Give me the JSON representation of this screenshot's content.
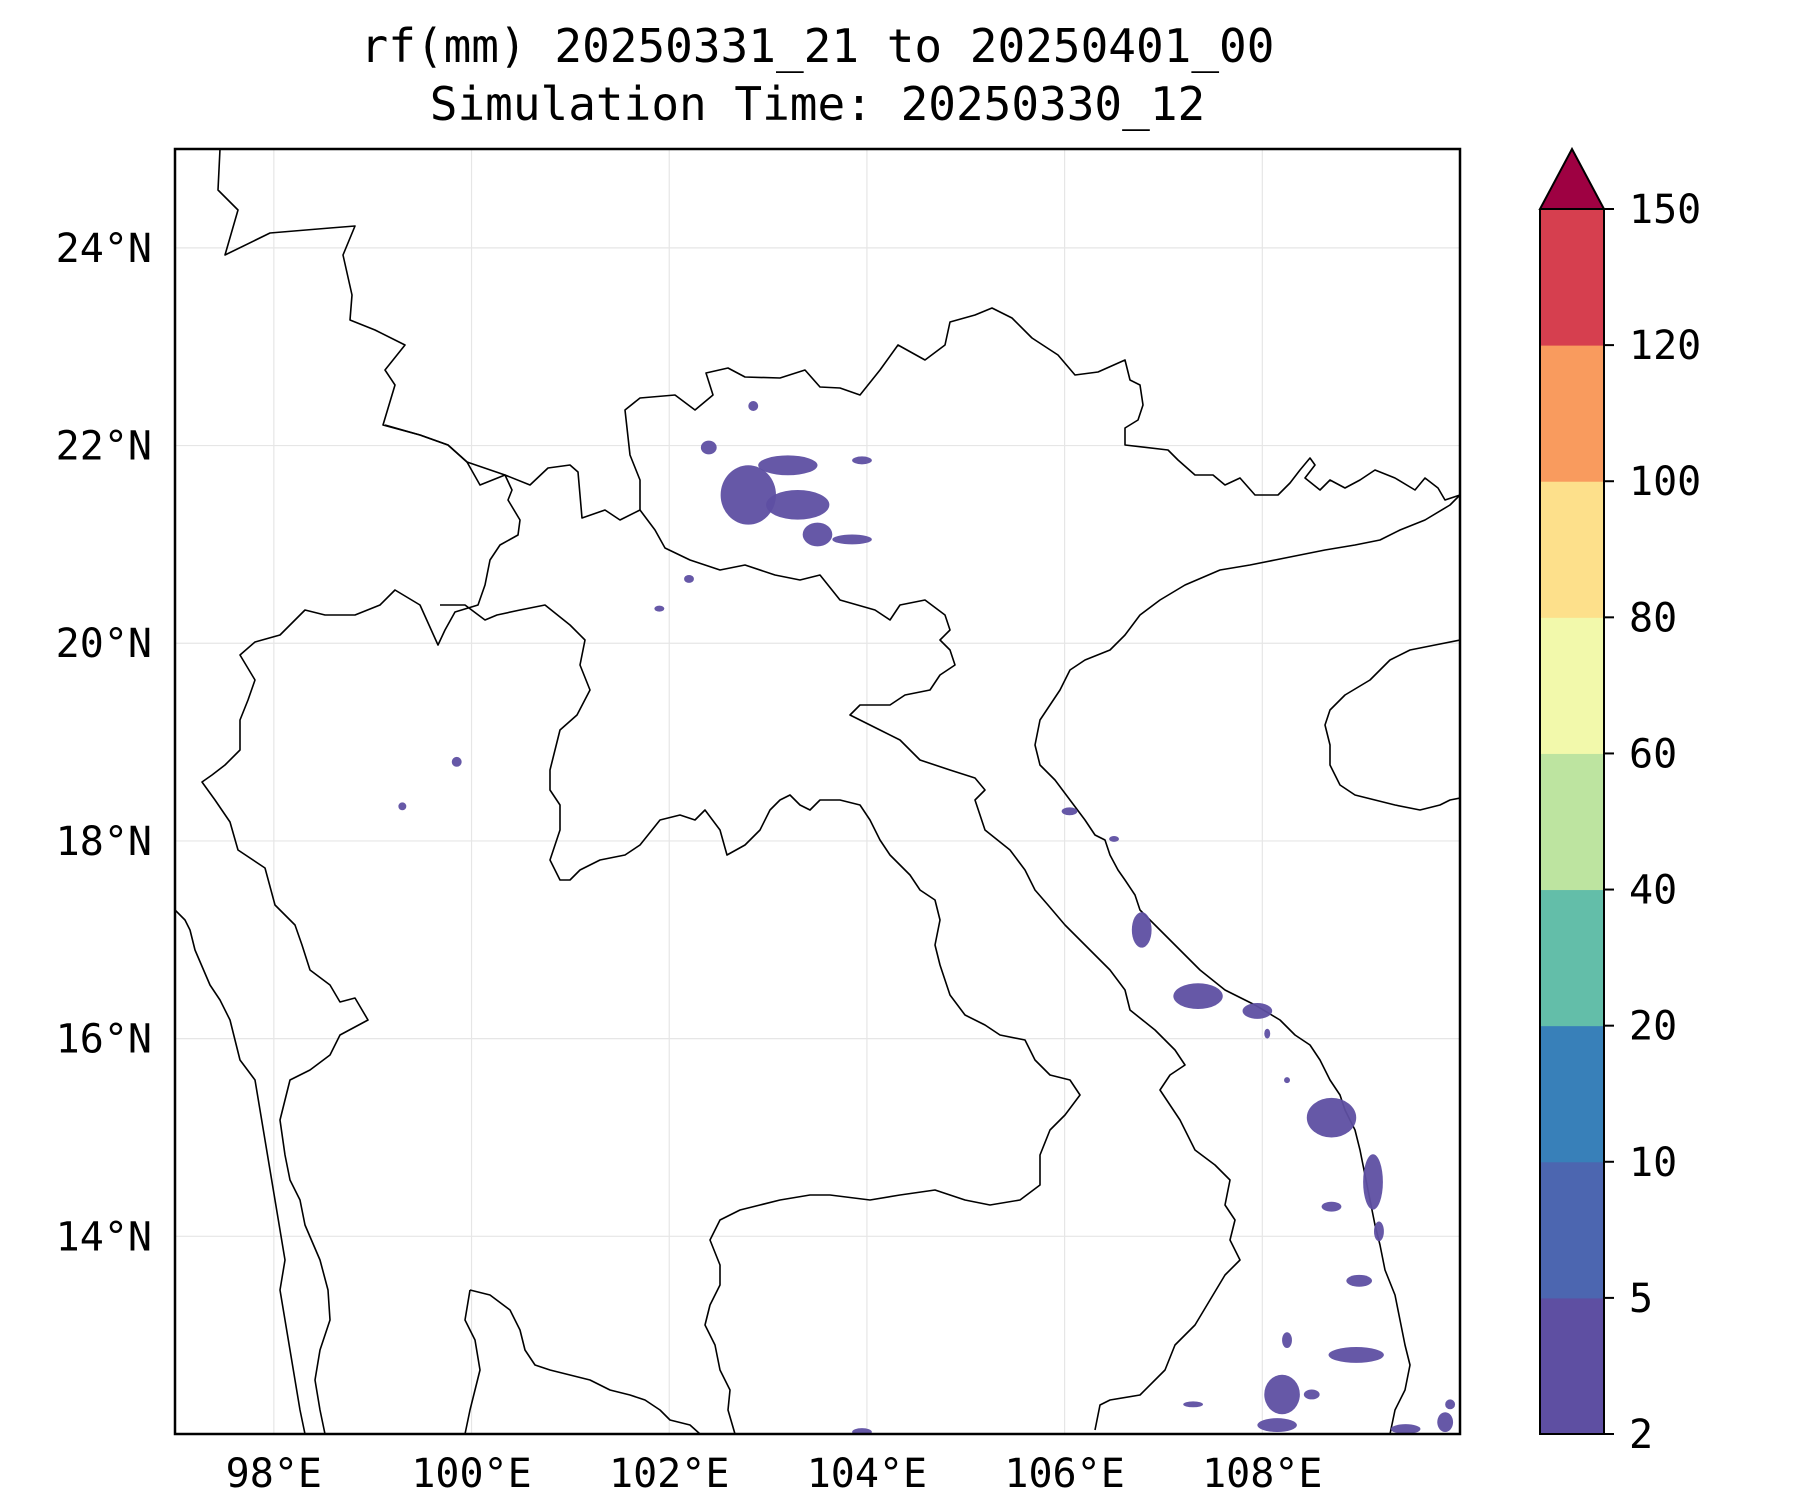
{
  "title": {
    "line1": "rf(mm) 20250331_21 to 20250401_00",
    "line2": "Simulation Time: 20250330_12"
  },
  "map": {
    "lon_range": [
      97.0,
      110.0
    ],
    "lat_range": [
      12.0,
      25.0
    ],
    "gridlines": true,
    "grid_color": "#e6e6e6",
    "coastline_color": "#000000",
    "lon_ticks": [
      {
        "value": 98,
        "label": "98°E"
      },
      {
        "value": 100,
        "label": "100°E"
      },
      {
        "value": 102,
        "label": "102°E"
      },
      {
        "value": 104,
        "label": "104°E"
      },
      {
        "value": 106,
        "label": "106°E"
      },
      {
        "value": 108,
        "label": "108°E"
      }
    ],
    "lat_ticks": [
      {
        "value": 14,
        "label": "14°N"
      },
      {
        "value": 16,
        "label": "16°N"
      },
      {
        "value": 18,
        "label": "18°N"
      },
      {
        "value": 20,
        "label": "20°N"
      },
      {
        "value": 22,
        "label": "22°N"
      },
      {
        "value": 24,
        "label": "24°N"
      }
    ]
  },
  "chart_data": {
    "type": "heatmap",
    "variable": "rf(mm)",
    "x_range": [
      97.0,
      110.0
    ],
    "y_range": [
      12.0,
      25.0
    ],
    "color_class": "2-5",
    "rain_patches": [
      {
        "lon": 102.8,
        "lat": 21.5,
        "rx": 0.28,
        "ry": 0.3
      },
      {
        "lon": 103.3,
        "lat": 21.4,
        "rx": 0.32,
        "ry": 0.15
      },
      {
        "lon": 103.2,
        "lat": 21.8,
        "rx": 0.3,
        "ry": 0.1
      },
      {
        "lon": 103.5,
        "lat": 21.1,
        "rx": 0.15,
        "ry": 0.12
      },
      {
        "lon": 103.85,
        "lat": 21.05,
        "rx": 0.2,
        "ry": 0.05
      },
      {
        "lon": 102.4,
        "lat": 21.98,
        "rx": 0.08,
        "ry": 0.07
      },
      {
        "lon": 103.95,
        "lat": 21.85,
        "rx": 0.1,
        "ry": 0.04
      },
      {
        "lon": 102.85,
        "lat": 22.4,
        "rx": 0.05,
        "ry": 0.05
      },
      {
        "lon": 102.2,
        "lat": 20.65,
        "rx": 0.05,
        "ry": 0.04
      },
      {
        "lon": 101.9,
        "lat": 20.35,
        "rx": 0.05,
        "ry": 0.03
      },
      {
        "lon": 99.85,
        "lat": 18.8,
        "rx": 0.05,
        "ry": 0.05
      },
      {
        "lon": 99.3,
        "lat": 18.35,
        "rx": 0.04,
        "ry": 0.04
      },
      {
        "lon": 106.05,
        "lat": 18.3,
        "rx": 0.08,
        "ry": 0.04
      },
      {
        "lon": 106.5,
        "lat": 18.02,
        "rx": 0.05,
        "ry": 0.03
      },
      {
        "lon": 106.78,
        "lat": 17.1,
        "rx": 0.1,
        "ry": 0.18
      },
      {
        "lon": 107.35,
        "lat": 16.43,
        "rx": 0.25,
        "ry": 0.13
      },
      {
        "lon": 107.95,
        "lat": 16.28,
        "rx": 0.15,
        "ry": 0.08
      },
      {
        "lon": 108.05,
        "lat": 16.05,
        "rx": 0.03,
        "ry": 0.05
      },
      {
        "lon": 108.25,
        "lat": 15.58,
        "rx": 0.03,
        "ry": 0.03
      },
      {
        "lon": 108.7,
        "lat": 15.2,
        "rx": 0.25,
        "ry": 0.2
      },
      {
        "lon": 109.12,
        "lat": 14.55,
        "rx": 0.1,
        "ry": 0.28
      },
      {
        "lon": 108.7,
        "lat": 14.3,
        "rx": 0.1,
        "ry": 0.05
      },
      {
        "lon": 109.18,
        "lat": 14.05,
        "rx": 0.05,
        "ry": 0.1
      },
      {
        "lon": 108.98,
        "lat": 13.55,
        "rx": 0.13,
        "ry": 0.06
      },
      {
        "lon": 108.25,
        "lat": 12.95,
        "rx": 0.05,
        "ry": 0.08
      },
      {
        "lon": 108.95,
        "lat": 12.8,
        "rx": 0.28,
        "ry": 0.08
      },
      {
        "lon": 108.2,
        "lat": 12.4,
        "rx": 0.18,
        "ry": 0.2
      },
      {
        "lon": 108.5,
        "lat": 12.4,
        "rx": 0.08,
        "ry": 0.05
      },
      {
        "lon": 108.15,
        "lat": 12.09,
        "rx": 0.2,
        "ry": 0.07
      },
      {
        "lon": 107.3,
        "lat": 12.3,
        "rx": 0.1,
        "ry": 0.03
      },
      {
        "lon": 103.95,
        "lat": 12.02,
        "rx": 0.1,
        "ry": 0.04
      },
      {
        "lon": 109.45,
        "lat": 12.05,
        "rx": 0.15,
        "ry": 0.05
      },
      {
        "lon": 109.85,
        "lat": 12.12,
        "rx": 0.08,
        "ry": 0.1
      },
      {
        "lon": 109.9,
        "lat": 12.3,
        "rx": 0.05,
        "ry": 0.05
      }
    ]
  },
  "colorbar": {
    "levels": [
      "2",
      "5",
      "10",
      "20",
      "40",
      "60",
      "80",
      "100",
      "120",
      "150"
    ],
    "colors": [
      "#5e4fa2",
      "#4c66b0",
      "#3880b9",
      "#63bea9",
      "#bde4a0",
      "#f2f9ab",
      "#fde08b",
      "#f99b5e",
      "#d63f4f"
    ],
    "extend_color": "#9e0142"
  }
}
